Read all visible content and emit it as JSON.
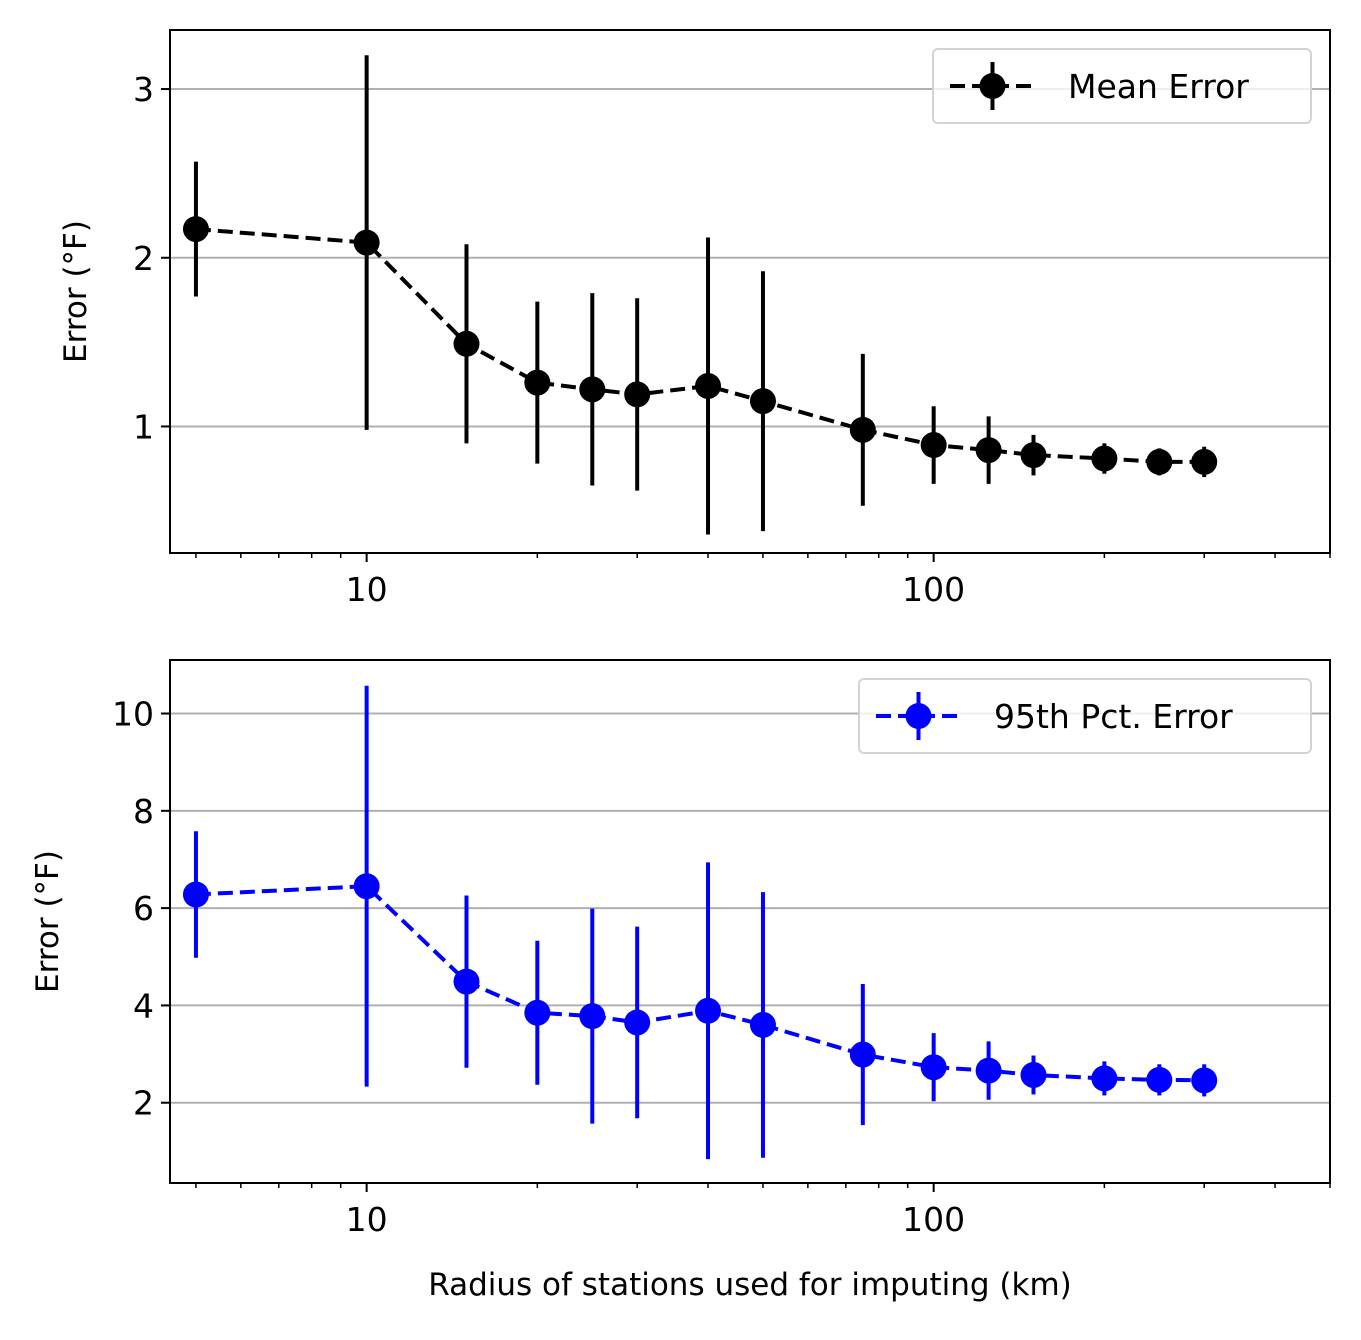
{
  "chart_data": [
    {
      "type": "line",
      "xscale": "log",
      "xlim": [
        4.5,
        500
      ],
      "ylim": [
        0.25,
        3.35
      ],
      "xticks": [
        10,
        100
      ],
      "xtick_labels": [
        "10",
        "100"
      ],
      "yticks": [
        1,
        2,
        3
      ],
      "ytick_labels": [
        "1",
        "2",
        "3"
      ],
      "xlabel": "",
      "ylabel": "Error (°F)",
      "grid": "y",
      "legend": "top-right",
      "series": [
        {
          "name": "Mean Error",
          "color": "#000000",
          "linestyle": "dashed",
          "marker": "circle",
          "x": [
            5,
            10,
            15,
            20,
            25,
            30,
            40,
            50,
            75,
            100,
            125,
            150,
            200,
            250,
            300
          ],
          "y": [
            2.17,
            2.09,
            1.49,
            1.26,
            1.22,
            1.19,
            1.24,
            1.15,
            0.98,
            0.89,
            0.86,
            0.83,
            0.81,
            0.79,
            0.79
          ],
          "yerr": [
            0.4,
            1.11,
            0.59,
            0.48,
            0.57,
            0.57,
            0.88,
            0.77,
            0.45,
            0.23,
            0.2,
            0.12,
            0.09,
            0.08,
            0.09
          ]
        }
      ]
    },
    {
      "type": "line",
      "xscale": "log",
      "xlim": [
        4.5,
        500
      ],
      "ylim": [
        0.35,
        11.1
      ],
      "xticks": [
        10,
        100
      ],
      "xtick_labels": [
        "10",
        "100"
      ],
      "yticks": [
        2,
        4,
        6,
        8,
        10
      ],
      "ytick_labels": [
        "2",
        "4",
        "6",
        "8",
        "10"
      ],
      "xlabel": "Radius of stations used for imputing (km)",
      "ylabel": "Error (°F)",
      "grid": "y",
      "legend": "top-right",
      "series": [
        {
          "name": "95th Pct. Error",
          "color": "#0000ff",
          "linestyle": "dashed",
          "marker": "circle",
          "x": [
            5,
            10,
            15,
            20,
            25,
            30,
            40,
            50,
            75,
            100,
            125,
            150,
            200,
            250,
            300
          ],
          "y": [
            6.28,
            6.45,
            4.49,
            3.85,
            3.78,
            3.65,
            3.89,
            3.6,
            2.99,
            2.73,
            2.66,
            2.57,
            2.5,
            2.47,
            2.46
          ],
          "yerr": [
            1.3,
            4.12,
            1.77,
            1.48,
            2.21,
            1.97,
            3.05,
            2.73,
            1.45,
            0.7,
            0.6,
            0.4,
            0.35,
            0.32,
            0.33
          ]
        }
      ]
    }
  ]
}
